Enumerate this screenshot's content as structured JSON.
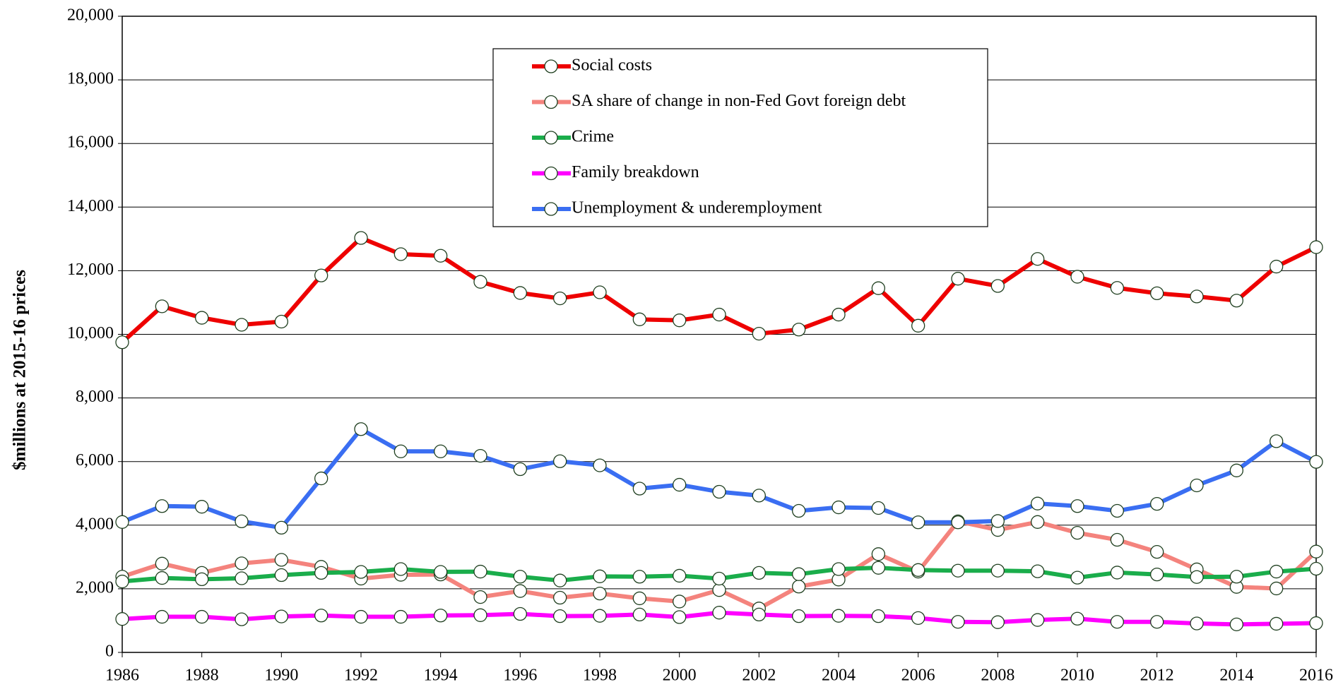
{
  "chart_data": {
    "type": "line",
    "y_label": "$millions at 2015-16 prices",
    "x": [
      1986,
      1987,
      1988,
      1989,
      1990,
      1991,
      1992,
      1993,
      1994,
      1995,
      1996,
      1997,
      1998,
      1999,
      2000,
      2001,
      2002,
      2003,
      2004,
      2005,
      2006,
      2007,
      2008,
      2009,
      2010,
      2011,
      2012,
      2013,
      2014,
      2015,
      2016
    ],
    "series": [
      {
        "name": "Social costs",
        "color": "#ee0000",
        "values": [
          9750,
          10880,
          10520,
          10300,
          10400,
          11850,
          13030,
          12520,
          12470,
          11650,
          11300,
          11130,
          11320,
          10470,
          10440,
          10620,
          10020,
          10150,
          10620,
          11450,
          10270,
          11750,
          11520,
          12370,
          11810,
          11460,
          11290,
          11190,
          11060,
          12130,
          12740
        ]
      },
      {
        "name": "SA share of change in non-Fed Govt foreign debt",
        "color": "#f4837d",
        "values": [
          2380,
          2790,
          2500,
          2800,
          2910,
          2690,
          2320,
          2440,
          2450,
          1740,
          1930,
          1720,
          1850,
          1700,
          1600,
          1960,
          1380,
          2070,
          2290,
          3090,
          2540,
          4120,
          3850,
          4100,
          3760,
          3540,
          3160,
          2610,
          2060,
          2010,
          3170
        ]
      },
      {
        "name": "Crime",
        "color": "#1aad4b",
        "values": [
          2230,
          2340,
          2300,
          2330,
          2430,
          2500,
          2530,
          2620,
          2530,
          2540,
          2380,
          2260,
          2390,
          2380,
          2410,
          2320,
          2500,
          2460,
          2620,
          2660,
          2590,
          2570,
          2570,
          2550,
          2350,
          2510,
          2450,
          2370,
          2380,
          2540,
          2630
        ]
      },
      {
        "name": "Family breakdown",
        "color": "#ff00ff",
        "values": [
          1050,
          1120,
          1120,
          1040,
          1130,
          1160,
          1120,
          1120,
          1160,
          1170,
          1210,
          1140,
          1150,
          1190,
          1110,
          1250,
          1190,
          1140,
          1150,
          1140,
          1080,
          960,
          950,
          1020,
          1060,
          960,
          960,
          910,
          880,
          900,
          920
        ]
      },
      {
        "name": "Unemployment & underemployment",
        "color": "#3a6ef2",
        "values": [
          4100,
          4600,
          4580,
          4120,
          3920,
          5470,
          7020,
          6320,
          6320,
          6180,
          5760,
          6010,
          5880,
          5150,
          5270,
          5050,
          4930,
          4450,
          4560,
          4540,
          4090,
          4090,
          4130,
          4680,
          4600,
          4450,
          4670,
          5250,
          5720,
          6640,
          5990
        ]
      }
    ],
    "xlim": [
      1986,
      2016
    ],
    "xticks": [
      1986,
      1988,
      1990,
      1992,
      1994,
      1996,
      1998,
      2000,
      2002,
      2004,
      2006,
      2008,
      2010,
      2012,
      2014,
      2016
    ],
    "ylim": [
      0,
      20000
    ],
    "yticks": [
      0,
      {
        "value": 2000,
        "label": "2,000"
      },
      {
        "value": 4000,
        "label": "4,000"
      },
      {
        "value": 6000,
        "label": "6,000"
      },
      {
        "value": 8000,
        "label": "8,000"
      },
      {
        "value": 10000,
        "label": "10,000"
      },
      {
        "value": 12000,
        "label": "12,000"
      },
      {
        "value": 14000,
        "label": "14,000"
      },
      {
        "value": 16000,
        "label": "16,000"
      },
      {
        "value": 18000,
        "label": "18,000"
      },
      {
        "value": 20000,
        "label": "20,000"
      }
    ],
    "grid": true,
    "legend_position": "upper center",
    "marker_fill": "#ffffff",
    "marker_edge": "#1f3f1f"
  }
}
